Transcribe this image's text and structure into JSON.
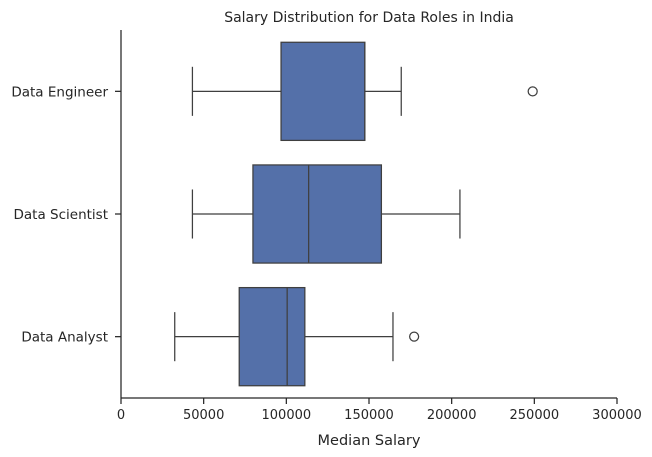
{
  "chart_data": {
    "type": "boxplot",
    "orientation": "horizontal",
    "title": "Salary Distribution for Data Roles in India",
    "xlabel": "Median Salary",
    "ylabel": "",
    "xlim": [
      0,
      300000
    ],
    "xticks": [
      0,
      50000,
      100000,
      150000,
      200000,
      250000,
      300000
    ],
    "xtick_labels": [
      "0",
      "50000",
      "100000",
      "150000",
      "200000",
      "250000",
      "300000"
    ],
    "grid": false,
    "box_color": "#5470a9",
    "line_color": "#3f3f3f",
    "categories": [
      "Data Engineer",
      "Data Scientist",
      "Data Analyst"
    ],
    "boxes": [
      {
        "category": "Data Engineer",
        "whisker_low": 43200,
        "q1": 96800,
        "median": 147500,
        "q3": 147500,
        "whisker_high": 169500,
        "outliers": [
          249000
        ]
      },
      {
        "category": "Data Scientist",
        "whisker_low": 43200,
        "q1": 79800,
        "median": 113500,
        "q3": 157500,
        "whisker_high": 205000,
        "outliers": []
      },
      {
        "category": "Data Analyst",
        "whisker_low": 32500,
        "q1": 71500,
        "median": 100500,
        "q3": 111200,
        "whisker_high": 164500,
        "outliers": [
          177300
        ]
      }
    ]
  }
}
